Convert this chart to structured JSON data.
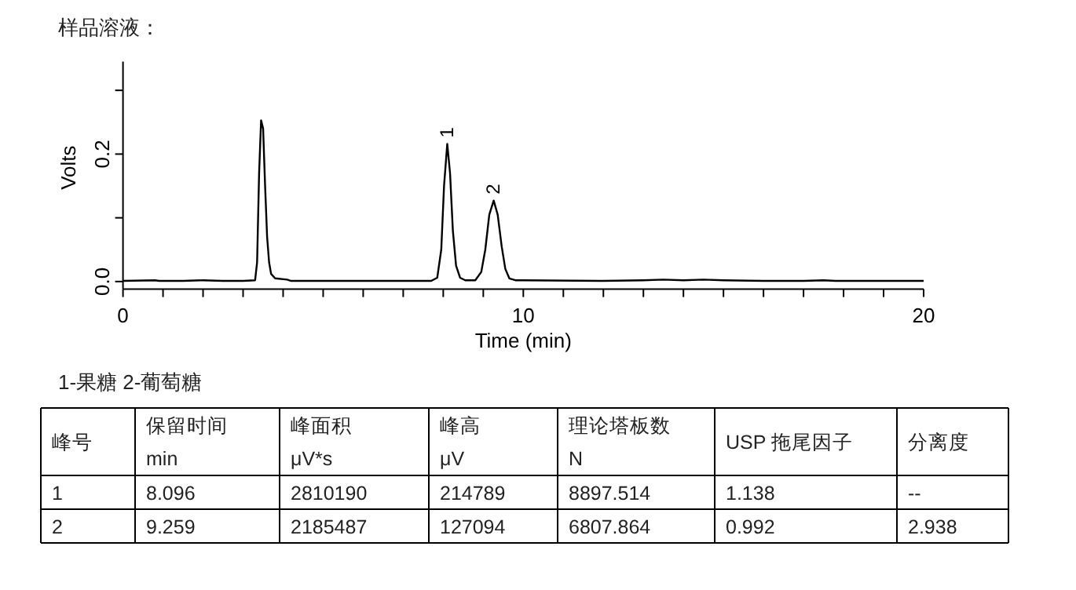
{
  "chart_data": [
    {
      "type": "line",
      "title": "样品溶液：",
      "xlabel": "Time (min)",
      "ylabel": "Volts",
      "xlim": [
        0,
        20
      ],
      "ylim": [
        -0.012,
        0.345
      ],
      "xticks": [
        0,
        {
          "value": 1,
          "label": null
        },
        {
          "value": 2,
          "label": null
        },
        {
          "value": 3,
          "label": null
        },
        {
          "value": 4,
          "label": null
        },
        {
          "value": 5,
          "label": null
        },
        {
          "value": 6,
          "label": null
        },
        {
          "value": 7,
          "label": null
        },
        {
          "value": 8,
          "label": null
        },
        {
          "value": 9,
          "label": null
        },
        10,
        {
          "value": 11,
          "label": null
        },
        {
          "value": 12,
          "label": null
        },
        {
          "value": 13,
          "label": null
        },
        {
          "value": 14,
          "label": null
        },
        {
          "value": 15,
          "label": null
        },
        {
          "value": 16,
          "label": null
        },
        {
          "value": 17,
          "label": null
        },
        {
          "value": 18,
          "label": null
        },
        {
          "value": 19,
          "label": null
        },
        20
      ],
      "yticks": [
        {
          "value": 0,
          "label": "0.0"
        },
        {
          "value": 0.1,
          "label": null
        },
        {
          "value": 0.2,
          "label": "0.2"
        },
        {
          "value": 0.3,
          "label": null
        }
      ],
      "grid": false,
      "marker": "none",
      "line_style": "solid",
      "series": [
        {
          "color": "#000000",
          "x": [
            0,
            0.8,
            0.9,
            1.5,
            2.0,
            2.5,
            3.0,
            3.3,
            3.35,
            3.4,
            3.45,
            3.5,
            3.55,
            3.6,
            3.65,
            3.7,
            3.8,
            4.1,
            4.2,
            5,
            6,
            7,
            7.7,
            7.85,
            7.95,
            8.02,
            8.1,
            8.17,
            8.24,
            8.32,
            8.42,
            8.55,
            8.8,
            8.95,
            9.05,
            9.15,
            9.26,
            9.36,
            9.46,
            9.55,
            9.65,
            9.8,
            10,
            12,
            13,
            13.5,
            14,
            14.5,
            15,
            16,
            17,
            17.5,
            17.8,
            20
          ],
          "values": [
            0.001,
            0.002,
            0.001,
            0.001,
            0.002,
            0.001,
            0.001,
            0.002,
            0.03,
            0.17,
            0.253,
            0.24,
            0.15,
            0.07,
            0.03,
            0.012,
            0.005,
            0.003,
            0.001,
            0.001,
            0.001,
            0.001,
            0.001,
            0.006,
            0.05,
            0.15,
            0.216,
            0.17,
            0.08,
            0.025,
            0.006,
            0.002,
            0.002,
            0.015,
            0.05,
            0.105,
            0.127,
            0.105,
            0.055,
            0.02,
            0.005,
            0.002,
            0.002,
            0.001,
            0.002,
            0.003,
            0.002,
            0.003,
            0.002,
            0.001,
            0.001,
            0.002,
            0.001,
            0.001
          ]
        }
      ],
      "annotations": [
        {
          "text": "1",
          "x": 8.1,
          "y": 0.216
        },
        {
          "text": "2",
          "x": 9.26,
          "y": 0.127
        }
      ]
    },
    {
      "type": "other",
      "title": "1-果糖  2-葡萄糖",
      "annotations": [
        "峰号",
        "保留时间\nmin",
        "峰面积\nμV*s",
        "峰高\nμV",
        "理论塔板数\nN",
        "USP 拖尾因子",
        "分离度",
        "1",
        "8.096",
        "2810190",
        "214789",
        "8897.514",
        "1.138",
        "--",
        "2",
        "9.259",
        "2185487",
        "127094",
        "6807.864",
        "0.992",
        "2.938"
      ]
    }
  ]
}
